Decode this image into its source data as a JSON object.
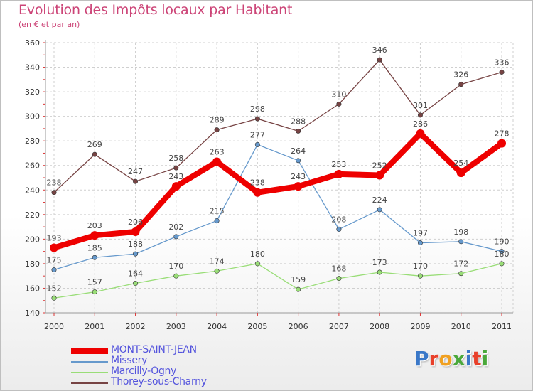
{
  "title": "Evolution des Impôts locaux par Habitant",
  "subtitle": "(en € et par an)",
  "logo": {
    "text": "Proxiti",
    "letter_colors": [
      "#3a78c8",
      "#e8402a",
      "#f0a020",
      "#4aa83a",
      "#3a78c8",
      "#e8402a",
      "#4aa83a"
    ]
  },
  "chart_data": {
    "type": "line",
    "title": "Evolution des Impôts locaux par Habitant",
    "subtitle": "(en € et par an)",
    "xlabel": "",
    "ylabel": "",
    "x": [
      "2000",
      "2001",
      "2002",
      "2003",
      "2004",
      "2005",
      "2006",
      "2007",
      "2008",
      "2009",
      "2010",
      "2011"
    ],
    "ylim": [
      140,
      360
    ],
    "yticks": [
      "140",
      "160",
      "180",
      "200",
      "220",
      "240",
      "260",
      "280",
      "300",
      "320",
      "340",
      "360"
    ],
    "grid": true,
    "legend_position": "bottom-left",
    "series": [
      {
        "name": "MONT-SAINT-JEAN",
        "color": "#ee0000",
        "values": [
          193,
          203,
          206,
          243,
          263,
          238,
          243,
          253,
          252,
          286,
          254,
          278
        ],
        "labels": [
          "193",
          "203",
          "206",
          "243",
          "263",
          "238",
          "243",
          "253",
          "252",
          "286",
          "254",
          "278"
        ]
      },
      {
        "name": "Missery",
        "color": "#6699cc",
        "values": [
          175,
          185,
          188,
          202,
          215,
          277,
          264,
          208,
          224,
          197,
          198,
          190
        ],
        "labels": [
          "175",
          "185",
          "188",
          "202",
          "215",
          "277",
          "264",
          "208",
          "224",
          "197",
          "198",
          "190"
        ]
      },
      {
        "name": "Marcilly-Ogny",
        "color": "#99dd77",
        "values": [
          152,
          157,
          164,
          170,
          174,
          180,
          159,
          168,
          173,
          170,
          172,
          180
        ],
        "labels": [
          "152",
          "157",
          "164",
          "170",
          "174",
          "180",
          "159",
          "168",
          "173",
          "170",
          "172",
          "180"
        ]
      },
      {
        "name": "Thorey-sous-Charny",
        "color": "#774444",
        "values": [
          238,
          269,
          247,
          258,
          289,
          298,
          288,
          310,
          346,
          301,
          326,
          336
        ],
        "labels": [
          "238",
          "269",
          "247",
          "258",
          "289",
          "298",
          "288",
          "310",
          "346",
          "301",
          "326",
          "336"
        ]
      }
    ]
  }
}
